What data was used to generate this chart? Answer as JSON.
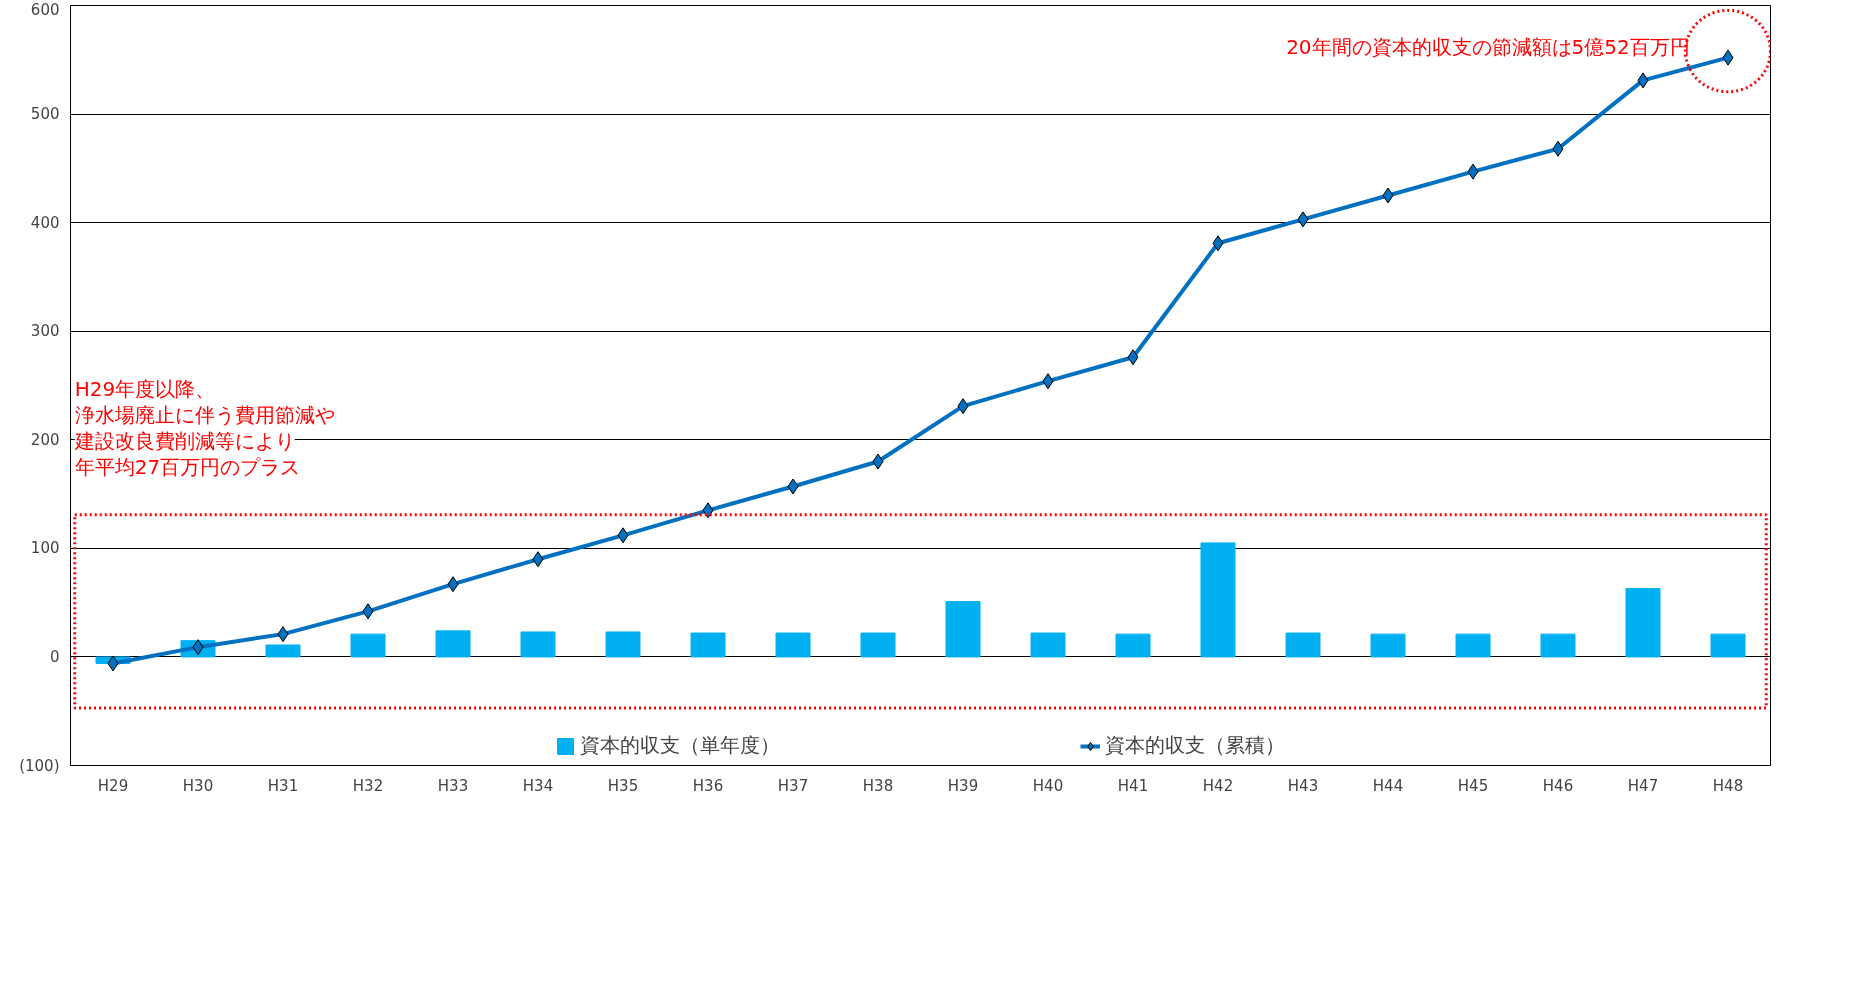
{
  "chart_data": {
    "type": "bar",
    "categories": [
      "H29",
      "H30",
      "H31",
      "H32",
      "H33",
      "H34",
      "H35",
      "H36",
      "H37",
      "H38",
      "H39",
      "H40",
      "H41",
      "H42",
      "H43",
      "H44",
      "H45",
      "H46",
      "H47",
      "H48"
    ],
    "series": [
      {
        "name": "資本的収支（単年度）",
        "color": "#00b0f0",
        "values": [
          -6,
          15,
          11,
          21,
          24,
          23,
          23,
          22,
          22,
          22,
          51,
          22,
          21,
          105,
          22,
          21,
          21,
          21,
          63,
          21
        ]
      },
      {
        "name": "資本的収支（累積）",
        "type": "line",
        "color": "#0070c0",
        "marker": "diamond",
        "values": [
          -6,
          9,
          21,
          42,
          67,
          90,
          112,
          135,
          157,
          180,
          231,
          254,
          276,
          381,
          403,
          425,
          447,
          468,
          531,
          552
        ]
      }
    ],
    "ylim": [
      -100,
      600
    ],
    "yticks": [
      {
        "value": -100,
        "label": "(100)"
      },
      0,
      100,
      200,
      300,
      400,
      500,
      600
    ],
    "grid": "y",
    "legend": "bottom",
    "annotations": [
      {
        "text": "20年間の資本的収支の節減額は5億52百万円",
        "x": "H48",
        "y": 552
      },
      "H29年度以降、",
      "浄水場廃止に伴う費用節減や",
      "建設改良費削減等により",
      "年平均27百万円のプラス"
    ]
  }
}
